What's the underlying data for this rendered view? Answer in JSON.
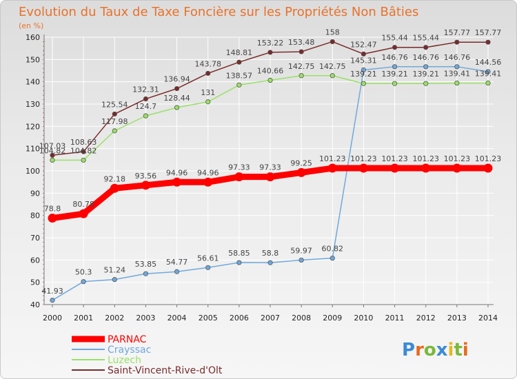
{
  "chart_data": {
    "type": "line",
    "title": "Evolution du Taux de Taxe Foncière sur les Propriétés Non Bâties",
    "subtitle": "(en %)",
    "x": [
      "2000",
      "2001",
      "2002",
      "2003",
      "2004",
      "2005",
      "2006",
      "2007",
      "2008",
      "2009",
      "2010",
      "2011",
      "2012",
      "2013",
      "2014"
    ],
    "y_ticks": [
      40,
      50,
      60,
      70,
      80,
      90,
      100,
      110,
      120,
      130,
      140,
      150,
      160
    ],
    "ylim": [
      40,
      160
    ],
    "series": [
      {
        "name": "PARNAC",
        "color": "#ff0000",
        "values": [
          78.8,
          80.78,
          92.18,
          93.56,
          94.96,
          94.96,
          97.33,
          97.33,
          99.25,
          101.23,
          101.23,
          101.23,
          101.23,
          101.23,
          101.23
        ],
        "labels": [
          "78.8",
          "80.78",
          "92.18",
          "93.56",
          "94.96",
          "94.96",
          "97.33",
          "97.33",
          "99.25",
          "101.23",
          "101.23",
          "101.23",
          "101.23",
          "101.23",
          "101.23"
        ]
      },
      {
        "name": "Crayssac",
        "color": "#6fa8dc",
        "values": [
          41.93,
          50.3,
          51.24,
          53.85,
          54.77,
          56.61,
          58.85,
          58.8,
          59.97,
          60.82,
          145.31,
          146.76,
          146.76,
          146.76,
          144.56
        ],
        "labels": [
          "41.93",
          "50.3",
          "51.24",
          "53.85",
          "54.77",
          "56.61",
          "58.85",
          "58.8",
          "59.97",
          "60.82",
          "145.31",
          "146.76",
          "146.76",
          "146.76",
          "144.56"
        ]
      },
      {
        "name": "Luzech",
        "color": "#99e066",
        "values": [
          104.82,
          104.82,
          117.98,
          124.7,
          128.44,
          131,
          138.57,
          140.66,
          142.75,
          142.75,
          139.21,
          139.21,
          139.21,
          139.41,
          139.41
        ],
        "labels": [
          "104.82",
          "104.82",
          "117.98",
          "124.7",
          "128.44",
          "131",
          "138.57",
          "140.66",
          "142.75",
          "142.75",
          "139.21",
          "139.21",
          "139.21",
          "139.41",
          "139.41"
        ]
      },
      {
        "name": "Saint-Vincent-Rive-d'Olt",
        "color": "#7a2a2a",
        "values": [
          107.03,
          108.63,
          125.54,
          132.31,
          136.94,
          143.78,
          148.81,
          153.22,
          153.48,
          158,
          152.47,
          155.44,
          155.44,
          157.77,
          157.77
        ],
        "labels": [
          "107.03",
          "108.63",
          "125.54",
          "132.31",
          "136.94",
          "143.78",
          "148.81",
          "153.22",
          "153.48",
          "158",
          "152.47",
          "155.44",
          "155.44",
          "157.77",
          "157.77"
        ]
      }
    ],
    "legend": {
      "position": "bottom-left"
    }
  },
  "brand": {
    "name": "Proxiti"
  }
}
